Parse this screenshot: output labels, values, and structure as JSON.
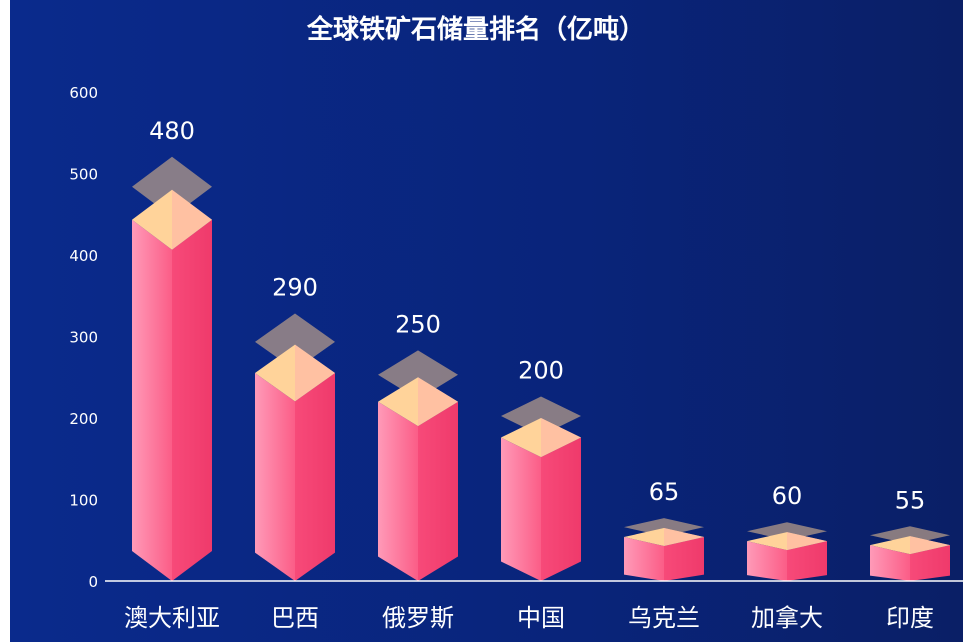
{
  "chart_data": {
    "type": "bar",
    "title": "全球铁矿石储量排名（亿吨）",
    "categories": [
      "澳大利亚",
      "巴西",
      "俄罗斯",
      "中国",
      "乌克兰",
      "加拿大",
      "印度"
    ],
    "values": [
      480,
      290,
      250,
      200,
      65,
      60,
      55
    ],
    "ylim": [
      0,
      600
    ],
    "yticks": [
      "0",
      "100",
      "200",
      "300",
      "400",
      "500",
      "600"
    ],
    "value_labels": [
      "480",
      "290",
      "250",
      "200",
      "65",
      "60",
      "55"
    ],
    "grid": false,
    "colors": {
      "background": "#0a2a8c",
      "bar_light": "#ff8fb0",
      "bar_dark": "#f24674",
      "top_cap": "#ffd39a",
      "ghost_cap": "#b39a88",
      "text": "#ffffff",
      "axis_line": "#ffffff"
    }
  }
}
